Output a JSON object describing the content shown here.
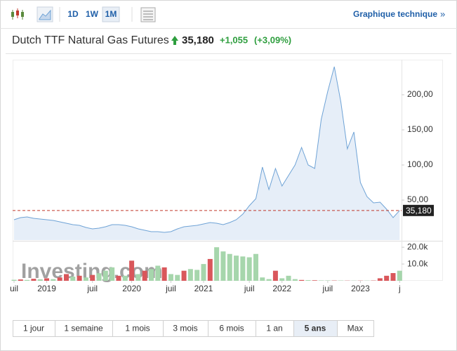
{
  "chart_data": {
    "type": "line",
    "title": "Dutch TTF Natural Gas Futures",
    "price": {
      "value": 35.18,
      "label": "35,180"
    },
    "change": {
      "value": 1.055,
      "label": "+1,055"
    },
    "change_pct": {
      "value": 3.09,
      "label": "(+3,09%)"
    },
    "intervals": [
      "1D",
      "1W",
      "1M"
    ],
    "interval_selected": 2,
    "technical_link": "Graphique technique",
    "watermark": "Investing.com",
    "ranges": [
      "1 jour",
      "1 semaine",
      "1 mois",
      "3 mois",
      "6 mois",
      "1 an",
      "5 ans",
      "Max"
    ],
    "range_selected": 6,
    "categories": [
      "uil",
      null,
      null,
      null,
      null,
      "2019",
      null,
      null,
      null,
      null,
      null,
      null,
      "juil",
      null,
      null,
      null,
      null,
      null,
      "2020",
      null,
      null,
      null,
      null,
      null,
      "juil",
      null,
      null,
      null,
      null,
      "2021",
      null,
      null,
      null,
      null,
      null,
      null,
      "juil",
      null,
      null,
      null,
      null,
      "2022",
      null,
      null,
      null,
      null,
      null,
      null,
      "juil",
      null,
      null,
      null,
      null,
      "2023",
      null,
      null,
      null,
      null,
      null,
      "j"
    ],
    "series": [
      {
        "name": "Prix",
        "color": "#6fa3d6",
        "fill": "#e6eef8",
        "values": [
          22,
          25,
          26,
          24,
          23,
          22,
          21,
          19,
          17,
          15,
          14,
          11,
          9,
          10,
          12,
          15,
          15,
          14,
          12,
          9,
          7,
          5,
          5,
          4,
          5,
          9,
          12,
          13,
          14,
          16,
          18,
          17,
          15,
          18,
          22,
          30,
          42,
          52,
          97,
          65,
          95,
          70,
          85,
          100,
          125,
          100,
          95,
          165,
          205,
          240,
          190,
          123,
          147,
          75,
          55,
          46,
          47,
          37,
          25,
          35.18
        ]
      },
      {
        "name": "Volume",
        "axis": "volume",
        "values": [
          600,
          800,
          500,
          1200,
          900,
          1500,
          1000,
          2000,
          4000,
          2500,
          3000,
          2000,
          3500,
          4500,
          6000,
          8000,
          3000,
          3000,
          12000,
          4000,
          6000,
          7000,
          9000,
          8000,
          4000,
          3500,
          6000,
          7000,
          6500,
          10000,
          13000,
          20000,
          17500,
          16000,
          15000,
          14500,
          14000,
          16000,
          2000,
          1000,
          6000,
          1500,
          3000,
          1000,
          500,
          400,
          300,
          200,
          200,
          150,
          150,
          100,
          100,
          100,
          100,
          150,
          1500,
          3000,
          4600,
          6000
        ],
        "colors": [
          "#a6d6ac",
          "#d9575b",
          "#a6d6ac",
          "#d9575b",
          "#a6d6ac",
          "#d9575b",
          "#a6d6ac",
          "#d9575b",
          "#d9575b",
          "#a6d6ac",
          "#d9575b",
          "#a6d6ac",
          "#d9575b",
          "#a6d6ac",
          "#a6d6ac",
          "#a6d6ac",
          "#d9575b",
          "#a6d6ac",
          "#d9575b",
          "#a6d6ac",
          "#d9575b",
          "#a6d6ac",
          "#a6d6ac",
          "#d9575b",
          "#a6d6ac",
          "#a6d6ac",
          "#d9575b",
          "#a6d6ac",
          "#a6d6ac",
          "#a6d6ac",
          "#d9575b",
          "#a6d6ac",
          "#a6d6ac",
          "#a6d6ac",
          "#a6d6ac",
          "#a6d6ac",
          "#a6d6ac",
          "#a6d6ac",
          "#a6d6ac",
          "#a6d6ac",
          "#d9575b",
          "#a6d6ac",
          "#a6d6ac",
          "#a6d6ac",
          "#d9575b",
          "#a6d6ac",
          "#d9575b",
          "#a6d6ac",
          "#a6d6ac",
          "#d9575b",
          "#a6d6ac",
          "#d9575b",
          "#a6d6ac",
          "#d9575b",
          "#a6d6ac",
          "#d9575b",
          "#d9575b",
          "#d9575b",
          "#d9575b",
          "#a6d6ac"
        ]
      }
    ],
    "ylim": [
      -7,
      250
    ],
    "yticks": [
      {
        "value": 50,
        "label": "50,00"
      },
      {
        "value": 100,
        "label": "100,00"
      },
      {
        "value": 150,
        "label": "150,00"
      },
      {
        "value": 200,
        "label": "200,00"
      }
    ],
    "volume_lim": [
      0,
      23000
    ],
    "volume_ticks": [
      {
        "value": 10000,
        "label": "10.0k"
      },
      {
        "value": 20000,
        "label": "20.0k"
      }
    ],
    "price_line_color": "#c0392b"
  }
}
